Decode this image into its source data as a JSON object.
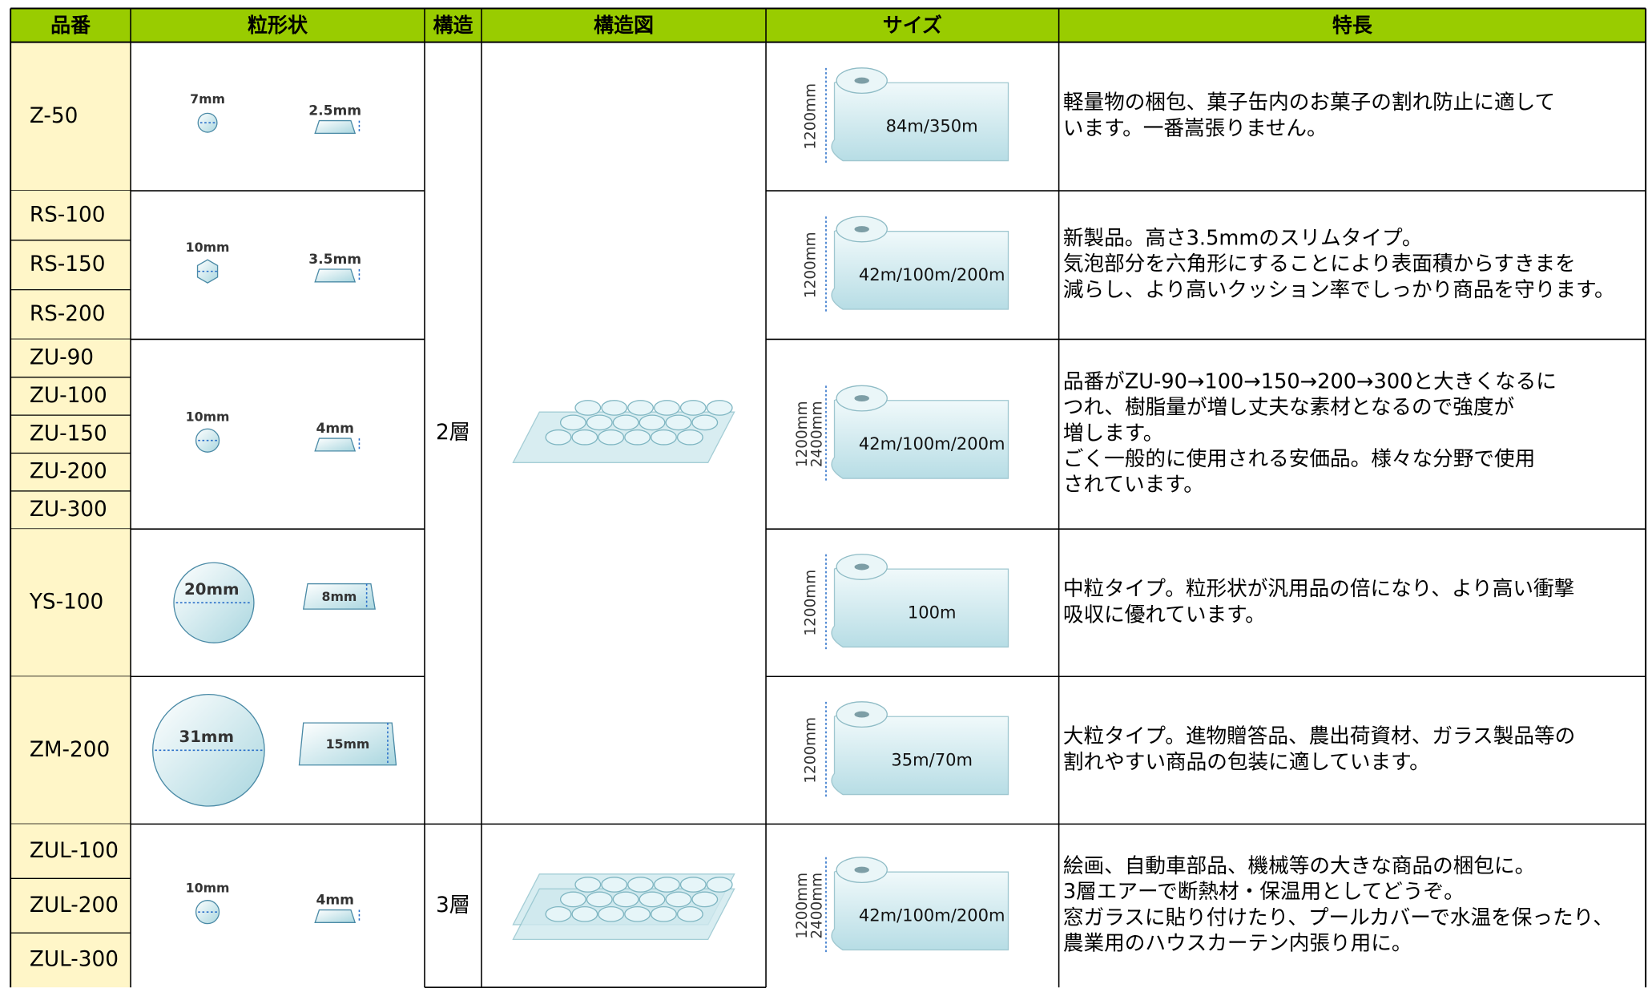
{
  "header": [
    "品番",
    "粒形状",
    "構造",
    "構造図",
    "サイズ",
    "特長"
  ],
  "groups": [
    {
      "codes": [
        "Z-50"
      ],
      "diameter": "7mm",
      "height": "2.5mm",
      "width": [
        "1200mm"
      ],
      "length": "84m/350m",
      "features": [
        "軽量物の梱包、菓子缶内のお菓子の割れ防止に適して",
        "います。一番嵩張りません。"
      ]
    },
    {
      "codes": [
        "RS-100",
        "RS-150",
        "RS-200"
      ],
      "diameter": "10mm",
      "height": "3.5mm",
      "width": [
        "1200mm"
      ],
      "length": "42m/100m/200m",
      "features": [
        "新製品。高さ3.5mmのスリムタイプ。",
        "気泡部分を六角形にすることにより表面積からすきまを",
        "減らし、より高いクッション率でしっかり商品を守ります。"
      ]
    },
    {
      "codes": [
        "ZU-90",
        "ZU-100",
        "ZU-150",
        "ZU-200",
        "ZU-300"
      ],
      "diameter": "10mm",
      "height": "4mm",
      "width": [
        "1200mm",
        "2400mm"
      ],
      "length": "42m/100m/200m",
      "features": [
        "品番がZU-90→100→150→200→300と大きくなるに",
        "つれ、樹脂量が増し丈夫な素材となるので強度が",
        "増します。",
        "ごく一般的に使用される安価品。様々な分野で使用",
        "されています。"
      ]
    },
    {
      "codes": [
        "YS-100"
      ],
      "diameter": "20mm",
      "height": "8mm",
      "width": [
        "1200mm"
      ],
      "length": "100m",
      "features": [
        "中粒タイプ。粒形状が汎用品の倍になり、より高い衝撃",
        "吸収に優れています。"
      ]
    },
    {
      "codes": [
        "ZM-200"
      ],
      "diameter": "31mm",
      "height": "15mm",
      "width": [
        "1200mm"
      ],
      "length": "35m/70m",
      "features": [
        "大粒タイプ。進物贈答品、農出荷資材、ガラス製品等の",
        "割れやすい商品の包装に適しています。"
      ]
    },
    {
      "codes": [
        "ZUL-100",
        "ZUL-200",
        "ZUL-300"
      ],
      "diameter": "10mm",
      "height": "4mm",
      "width": [
        "1200mm",
        "2400mm"
      ],
      "length": "42m/100m/200m",
      "features": [
        "絵画、自動車部品、機械等の大きな商品の梱包に。",
        "3層エアーで断熱材・保温用としてどうぞ。",
        "窓ガラスに貼り付けたり、プールカバーで水温を保ったり、",
        "農業用のハウスカーテン内張り用に。"
      ]
    }
  ],
  "structures": [
    "2層",
    "3層"
  ]
}
